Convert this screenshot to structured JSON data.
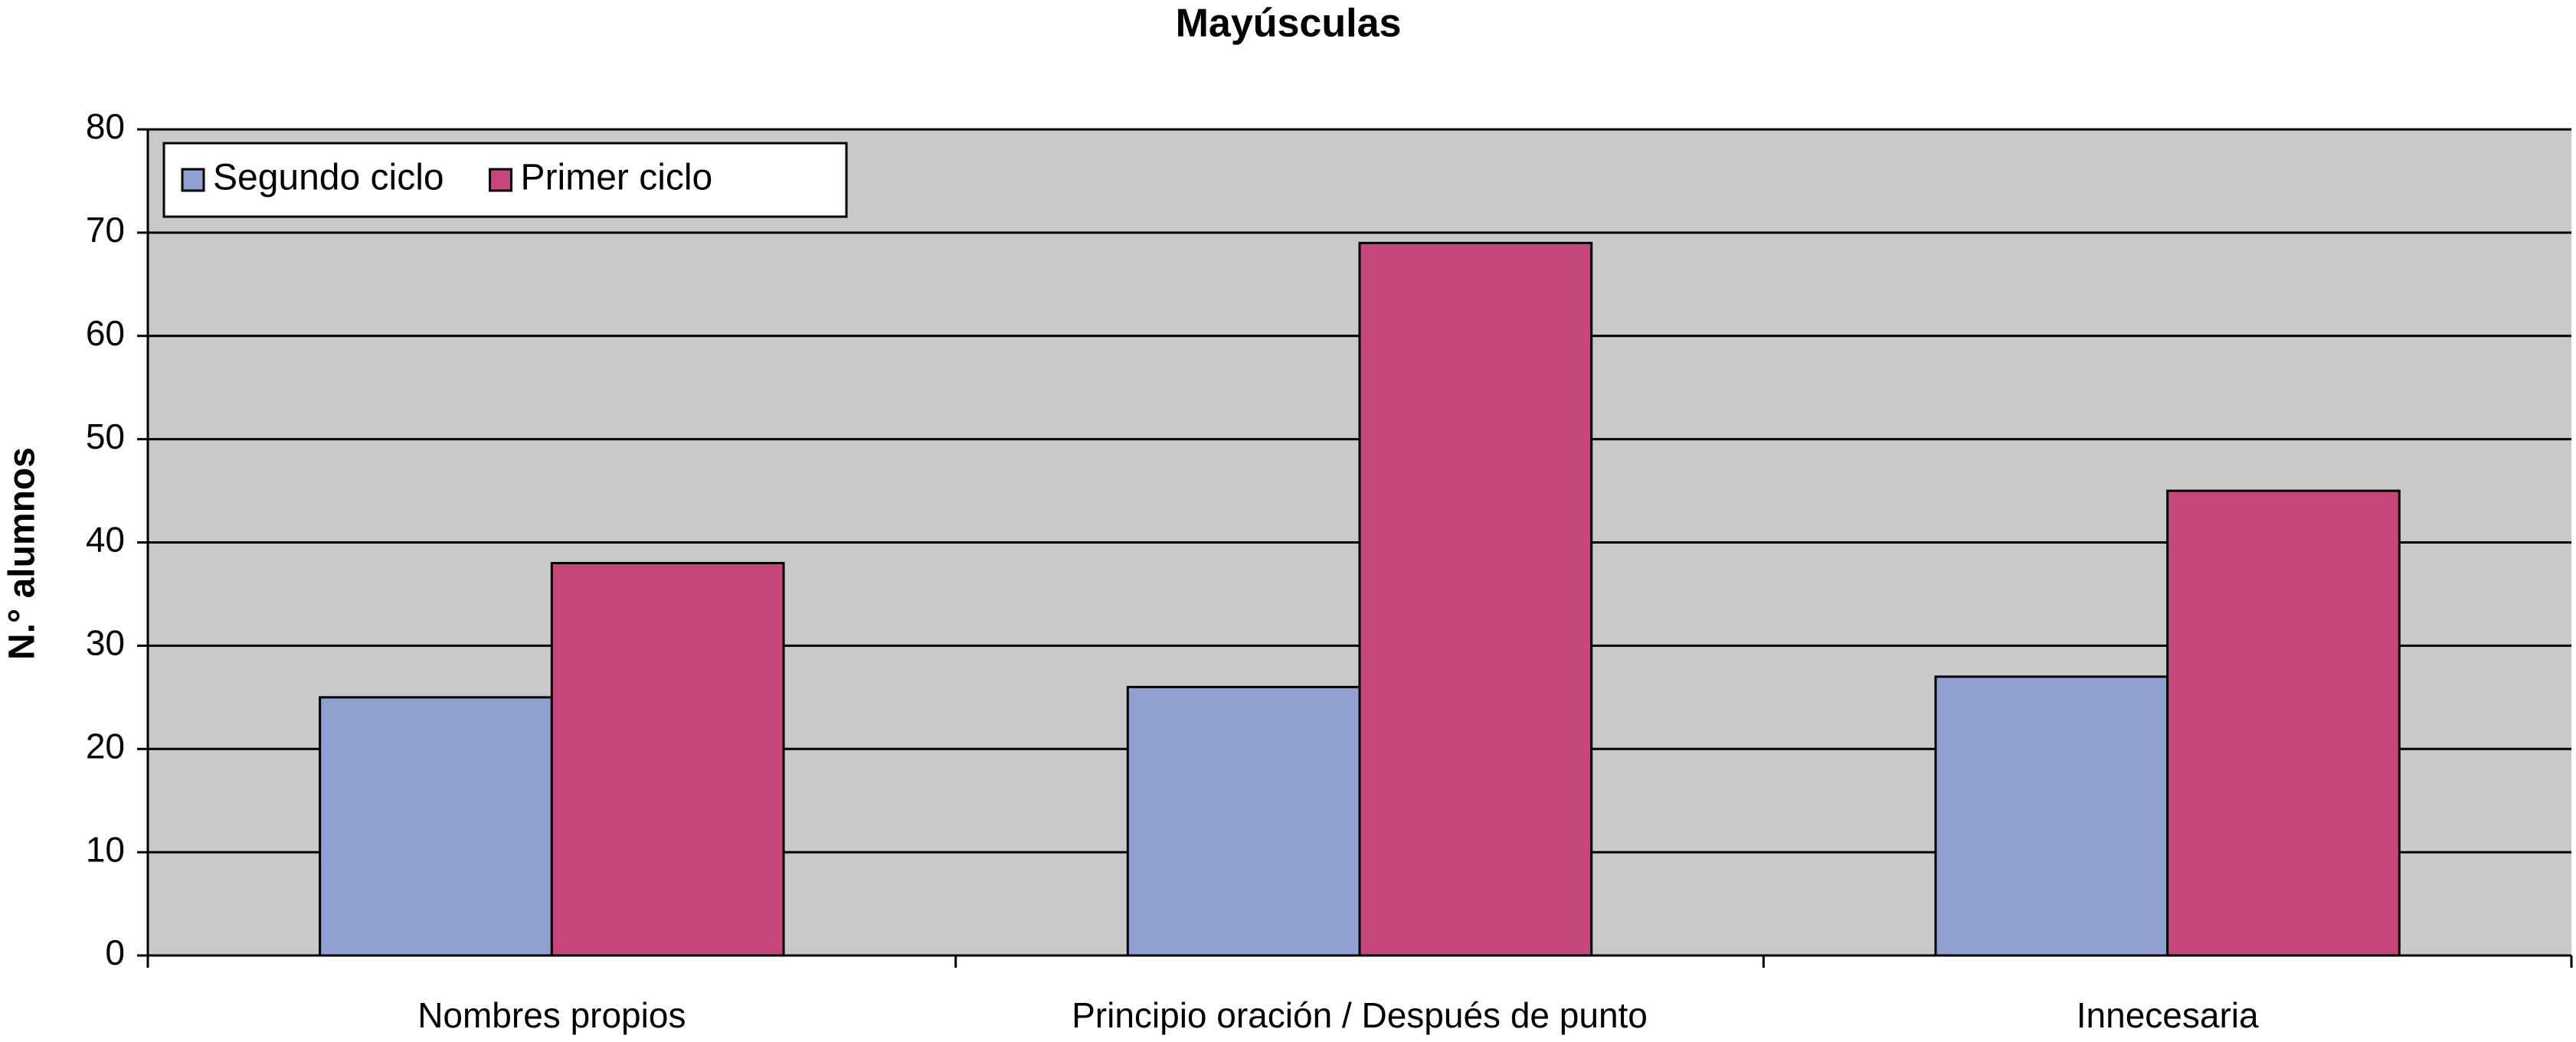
{
  "chart_data": {
    "type": "bar",
    "title": "Mayúsculas",
    "y_label": "N.° alumnos",
    "categories": [
      "Nombres propios",
      "Principio oración / Después de punto",
      "Innecesaria"
    ],
    "series": [
      {
        "name": "Segundo ciclo",
        "color": "#8fa0d1",
        "values": [
          25,
          26,
          27
        ]
      },
      {
        "name": "Primer ciclo",
        "color": "#c5467b",
        "values": [
          38,
          69,
          45
        ]
      }
    ],
    "ylim": [
      0,
      80
    ],
    "yticks": [
      0,
      10,
      20,
      30,
      40,
      50,
      60,
      70,
      80
    ],
    "grid": true,
    "legend": "upper left"
  }
}
